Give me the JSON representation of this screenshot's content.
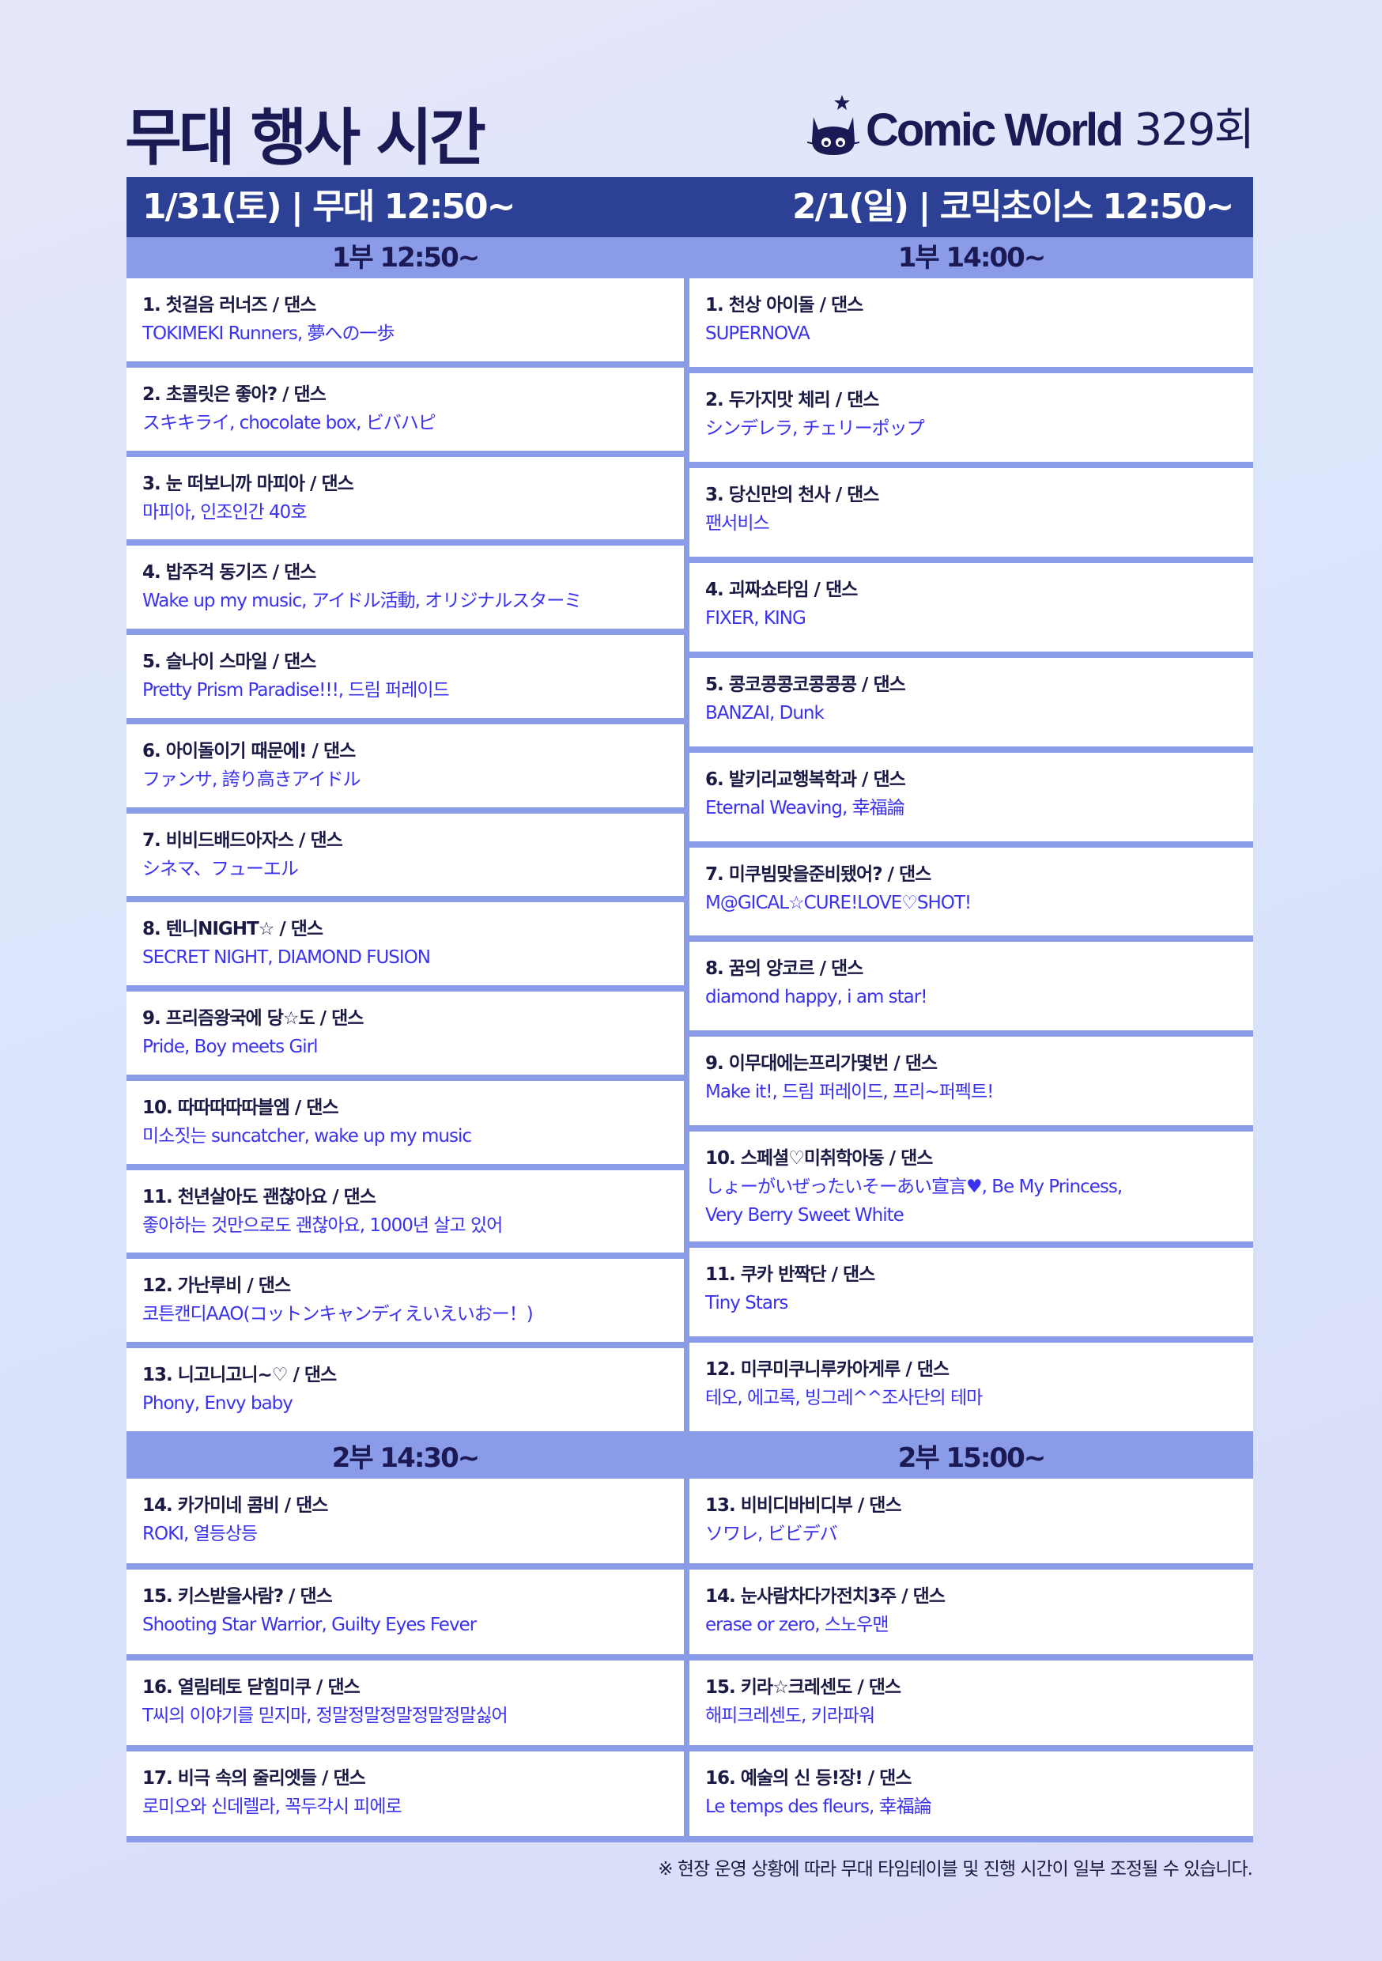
{
  "title": "무대 행사 시간",
  "logo": {
    "brand": "Comic World",
    "issue": "329회",
    "icon": "cat-icon"
  },
  "colors": {
    "header": "#2c4096",
    "subheader": "#8a9be8",
    "title_text": "#1b1a55",
    "song_text": "#3a32ee"
  },
  "days": [
    {
      "header": "1/31(토) | 무대 12:50~",
      "parts": [
        {
          "label": "1부 12:50~",
          "rows": [
            {
              "title": "1. 첫걸음 러너즈 / 댄스",
              "songs": "TOKIMEKI Runners, 夢への一歩"
            },
            {
              "title": "2. 초콜릿은 좋아? / 댄스",
              "songs": "スキキライ, chocolate box, ビバハピ"
            },
            {
              "title": "3. 눈 떠보니까 마피아 / 댄스",
              "songs": "마피아, 인조인간 40호"
            },
            {
              "title": "4. 밥주걱 동기즈 / 댄스",
              "songs": "Wake up my music, アイドル活動, オリジナルスターミ"
            },
            {
              "title": "5. 슬나이 스마일 / 댄스",
              "songs": "Pretty Prism Paradise!!!, 드림 퍼레이드"
            },
            {
              "title": "6. 아이돌이기 때문에! / 댄스",
              "songs": "ファンサ, 誇り高きアイドル"
            },
            {
              "title": "7. 비비드배드아자스 / 댄스",
              "songs": "シネマ、フューエル"
            },
            {
              "title": "8. 텐니NIGHT☆ / 댄스",
              "songs": "SECRET NIGHT, DIAMOND FUSION"
            },
            {
              "title": "9. 프리즘왕국에 당☆도 / 댄스",
              "songs": "Pride, Boy meets Girl"
            },
            {
              "title": "10. 따따따따따블엠 / 댄스",
              "songs": "미소짓는 suncatcher, wake up my music"
            },
            {
              "title": "11. 천년살아도 괜찮아요 / 댄스",
              "songs": "좋아하는 것만으로도 괜찮아요, 1000년 살고 있어"
            },
            {
              "title": "12. 가난루비 / 댄스",
              "songs": "코튼캔디AAO(コットンキャンディえいえいおー！)"
            },
            {
              "title": "13. 니고니고니~♡ / 댄스",
              "songs": "Phony, Envy baby"
            }
          ]
        },
        {
          "label": "2부 14:30~",
          "rows": [
            {
              "title": "14. 카가미네 콤비 / 댄스",
              "songs": "ROKI, 열등상등"
            },
            {
              "title": "15. 키스받을사람? / 댄스",
              "songs": "Shooting Star Warrior, Guilty Eyes Fever"
            },
            {
              "title": "16. 열림테토 닫힘미쿠 / 댄스",
              "songs": "T씨의 이야기를 믿지마, 정말정말정말정말정말싫어"
            },
            {
              "title": "17. 비극 속의 줄리엣들 / 댄스",
              "songs": "로미오와 신데렐라, 꼭두각시 피에로"
            }
          ]
        }
      ]
    },
    {
      "header": "2/1(일) | 코믹초이스 12:50~",
      "parts": [
        {
          "label": "1부 14:00~",
          "rows": [
            {
              "title": "1. 천상 아이돌 / 댄스",
              "songs": "SUPERNOVA"
            },
            {
              "title": "2. 두가지맛 체리 / 댄스",
              "songs": "シンデレラ, チェリーポップ"
            },
            {
              "title": "3. 당신만의 천사 / 댄스",
              "songs": "팬서비스"
            },
            {
              "title": "4. 괴짜쇼타임 / 댄스",
              "songs": "FIXER, KING"
            },
            {
              "title": "5. 콩코콩콩코콩콩콩 / 댄스",
              "songs": "BANZAI, Dunk"
            },
            {
              "title": "6. 발키리교행복학과 / 댄스",
              "songs": "Eternal Weaving, 幸福論"
            },
            {
              "title": "7. 미쿠빔맞을준비됐어? / 댄스",
              "songs": "M@GICAL☆CURE!LOVE♡SHOT!"
            },
            {
              "title": "8. 꿈의 앙코르 / 댄스",
              "songs": "diamond happy, i am star!"
            },
            {
              "title": "9. 이무대에는프리가몇번 / 댄스",
              "songs": "Make it!, 드림 퍼레이드, 프리~퍼펙트!"
            },
            {
              "title": "10. 스페셜♡미취학아동 / 댄스",
              "songs": "しょーがいぜったいそーあい宣言♥, Be My Princess,",
              "songs2": "Very Berry Sweet White"
            },
            {
              "title": "11. 쿠카 반짝단 / 댄스",
              "songs": "Tiny Stars"
            },
            {
              "title": "12. 미쿠미쿠니루카아게루 / 댄스",
              "songs": "테오, 에고록, 빙그레^^조사단의 테마"
            }
          ]
        },
        {
          "label": "2부 15:00~",
          "rows": [
            {
              "title": "13. 비비디바비디부 / 댄스",
              "songs": "ソワレ, ビビデバ"
            },
            {
              "title": "14. 눈사람차다가전치3주 / 댄스",
              "songs": "erase or zero, 스노우맨"
            },
            {
              "title": "15. 키라☆크레센도  / 댄스",
              "songs": "해피크레센도, 키라파워"
            },
            {
              "title": "16. 예술의 신 등!장!  / 댄스",
              "songs": "Le temps des fleurs, 幸福論"
            }
          ]
        }
      ]
    }
  ],
  "note": "※ 현장 운영 상황에 따라 무대 타임테이블 및 진행 시간이 일부 조정될 수 있습니다."
}
